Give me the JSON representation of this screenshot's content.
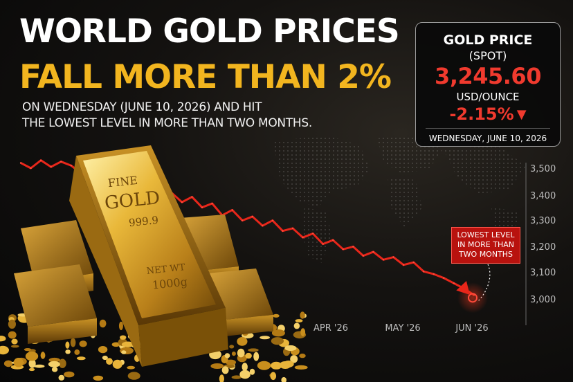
{
  "headline": {
    "line1": "WORLD GOLD PRICES",
    "line2": "FALL MORE THAN 2%",
    "sub_line1": "ON WEDNESDAY (JUNE 10, 2026) AND HIT",
    "sub_line2": "THE LOWEST LEVEL IN MORE THAN TWO MONTHS."
  },
  "price_box": {
    "title": "GOLD PRICE",
    "subtitle": "(SPOT)",
    "price": "3,245.60",
    "unit": "USD/OUNCE",
    "change": "-2.15%",
    "change_icon": "down-triangle-icon",
    "date": "WEDNESDAY, JUNE 10, 2026"
  },
  "gold_bar": {
    "line1": "FINE",
    "line2": "GOLD",
    "purity": "999.9",
    "weight_label": "NET WT",
    "weight": "1000g"
  },
  "callout": {
    "text": "LOWEST LEVEL IN MORE THAN TWO MONTHS"
  },
  "colors": {
    "accent_gold": "#f2b51f",
    "line_red": "#e8261a",
    "price_red": "#f03a2e"
  },
  "chart_data": {
    "type": "line",
    "title": "",
    "xlabel": "",
    "ylabel": "",
    "y_ticks": [
      "3,500",
      "3,400",
      "3,300",
      "3,200",
      "3,100",
      "3,000"
    ],
    "y_tick_values": [
      3500,
      3400,
      3300,
      3200,
      3100,
      3000
    ],
    "x_ticks": [
      "APR '26",
      "MAY '26",
      "JUN '26"
    ],
    "x_tick_values": [
      30,
      60,
      90
    ],
    "ylim": [
      2980,
      3560
    ],
    "xlim": [
      0,
      95
    ],
    "grid": false,
    "series": [
      {
        "x": [
          0,
          2,
          4,
          6,
          8,
          10,
          12,
          14,
          16,
          18,
          20,
          22,
          24,
          26,
          28,
          30,
          32,
          34,
          36,
          38,
          40,
          42,
          44,
          46,
          48,
          50,
          52,
          54,
          56,
          58,
          60,
          62,
          64,
          66,
          68,
          70,
          72,
          74,
          76,
          78,
          80,
          82,
          84,
          86,
          88,
          90
        ],
        "y": [
          3520,
          3500,
          3530,
          3505,
          3525,
          3510,
          3480,
          3455,
          3470,
          3440,
          3410,
          3430,
          3395,
          3420,
          3385,
          3405,
          3370,
          3390,
          3350,
          3365,
          3320,
          3340,
          3300,
          3315,
          3280,
          3300,
          3260,
          3270,
          3235,
          3250,
          3210,
          3225,
          3190,
          3200,
          3165,
          3180,
          3150,
          3160,
          3130,
          3140,
          3105,
          3095,
          3080,
          3060,
          3040,
          3015
        ]
      }
    ],
    "lowest_point": {
      "x": 90,
      "y": 3015
    }
  }
}
